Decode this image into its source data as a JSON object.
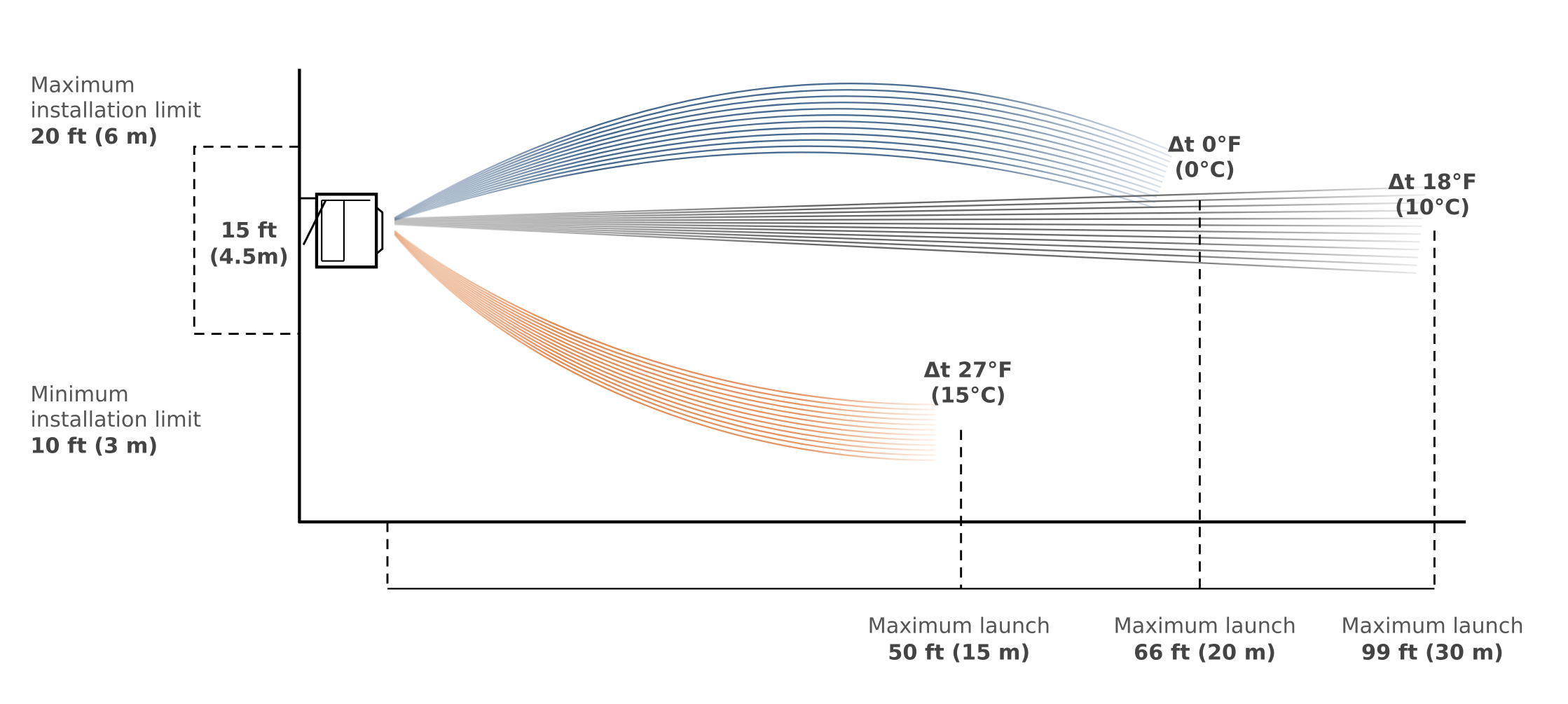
{
  "install_limits": [
    {
      "lines": [
        "Maximum",
        "installation limit"
      ],
      "value": "20 ft (6 m)"
    },
    {
      "lines": [
        "Minimum",
        "installation limit"
      ],
      "value": "10 ft (3 m)"
    }
  ],
  "unit_height": {
    "lines": [
      "15 ft",
      "(4.5m)"
    ]
  },
  "streams": [
    {
      "lines": [
        "Δt 27°F",
        "(15°C)"
      ]
    },
    {
      "lines": [
        "Δt 0°F",
        "(0°C)"
      ]
    },
    {
      "lines": [
        "Δt 18°F",
        "(10°C)"
      ]
    }
  ],
  "launches": [
    {
      "label": "Maximum launch",
      "value": "50 ft (15 m)"
    },
    {
      "label": "Maximum launch",
      "value": "66 ft (20 m)"
    },
    {
      "label": "Maximum launch",
      "value": "99 ft (30 m)"
    }
  ]
}
